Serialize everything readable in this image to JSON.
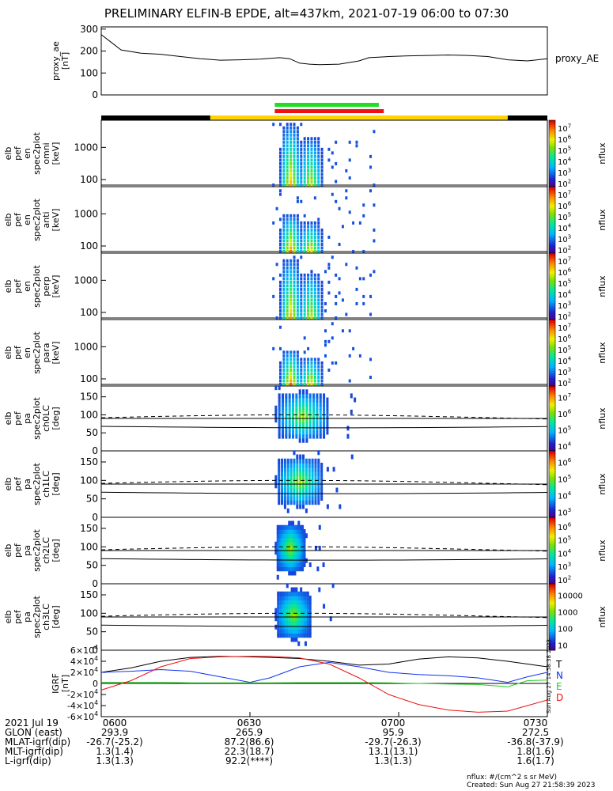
{
  "title": "PRELIMINARY ELFIN-B EPDE, alt=437km, 2021-07-19 06:00 to 07:30",
  "colors": {
    "background": "#ffffff",
    "ink": "#000000",
    "bar_green": "#22dd22",
    "bar_red": "#ee1111",
    "bar_yellow": "#ffd400",
    "bar_black": "#000000",
    "mag_T": "#000000",
    "mag_N": "#1133ee",
    "mag_E": "#22cc22",
    "mag_D": "#ee1111"
  },
  "chart_data": [
    {
      "type": "line",
      "panel": "proxy_ae",
      "ylabel": [
        "proxy_ae",
        "[nT]"
      ],
      "ylim": [
        0,
        310
      ],
      "yticks": [
        0,
        100,
        200,
        300
      ],
      "legend": "proxy_AE",
      "x_minutes": [
        0,
        2,
        4,
        8,
        12,
        16,
        20,
        24,
        28,
        32,
        36,
        38,
        40,
        42,
        44,
        48,
        52,
        54,
        56,
        58,
        62,
        66,
        70,
        74,
        78,
        82,
        86,
        90
      ],
      "values": [
        275,
        240,
        205,
        190,
        185,
        175,
        165,
        158,
        160,
        163,
        170,
        165,
        145,
        140,
        138,
        140,
        155,
        170,
        172,
        175,
        178,
        180,
        182,
        180,
        175,
        160,
        155,
        165
      ]
    },
    {
      "type": "heatmap",
      "panel": "omni",
      "ylabel": [
        "elb",
        "pef",
        "en",
        "spec2plot",
        "omni",
        "[keV]"
      ],
      "yscale": "log",
      "ylim": [
        60,
        7000
      ],
      "yticks": [
        100,
        1000
      ],
      "colorbar_label": "nflux",
      "colorbar_ticks": [
        "10^2",
        "10^3",
        "10^4",
        "10^5",
        "10^6",
        "10^7"
      ]
    },
    {
      "type": "heatmap",
      "panel": "anti",
      "ylabel": [
        "elb",
        "pef",
        "en",
        "spec2plot",
        "anti",
        "[keV]"
      ],
      "yscale": "log",
      "ylim": [
        60,
        7000
      ],
      "yticks": [
        100,
        1000
      ],
      "colorbar_label": "nflux",
      "colorbar_ticks": [
        "10^2",
        "10^3",
        "10^4",
        "10^5",
        "10^6",
        "10^7"
      ]
    },
    {
      "type": "heatmap",
      "panel": "perp",
      "ylabel": [
        "elb",
        "pef",
        "en",
        "spec2plot",
        "perp",
        "[keV]"
      ],
      "yscale": "log",
      "ylim": [
        60,
        7000
      ],
      "yticks": [
        100,
        1000
      ],
      "colorbar_label": "nflux",
      "colorbar_ticks": [
        "10^2",
        "10^3",
        "10^4",
        "10^5",
        "10^6",
        "10^7"
      ]
    },
    {
      "type": "heatmap",
      "panel": "para",
      "ylabel": [
        "elb",
        "pef",
        "en",
        "spec2plot",
        "para",
        "[keV]"
      ],
      "yscale": "log",
      "ylim": [
        60,
        7000
      ],
      "yticks": [
        100,
        1000
      ],
      "colorbar_label": "nflux",
      "colorbar_ticks": [
        "10^2",
        "10^3",
        "10^4",
        "10^5",
        "10^6",
        "10^7"
      ]
    },
    {
      "type": "heatmap",
      "panel": "ch0LC",
      "ylabel": [
        "elb",
        "pef",
        "pa",
        "spec2plot",
        "ch0LC",
        "[deg]"
      ],
      "ylim": [
        0,
        180
      ],
      "yticks": [
        0,
        50,
        100,
        150
      ],
      "colorbar_label": "nflux",
      "colorbar_ticks": [
        "10^4",
        "10^5",
        "10^6",
        "10^7"
      ]
    },
    {
      "type": "heatmap",
      "panel": "ch1LC",
      "ylabel": [
        "elb",
        "pef",
        "pa",
        "spec2plot",
        "ch1LC",
        "[deg]"
      ],
      "ylim": [
        0,
        180
      ],
      "yticks": [
        0,
        50,
        100,
        150
      ],
      "colorbar_label": "nflux",
      "colorbar_ticks": [
        "10^3",
        "10^4",
        "10^5",
        "10^6"
      ]
    },
    {
      "type": "heatmap",
      "panel": "ch2LC",
      "ylabel": [
        "elb",
        "pef",
        "pa",
        "spec2plot",
        "ch2LC",
        "[deg]"
      ],
      "ylim": [
        0,
        180
      ],
      "yticks": [
        0,
        50,
        100,
        150
      ],
      "colorbar_label": "nflux",
      "colorbar_ticks": [
        "10^2",
        "10^3",
        "10^4",
        "10^5",
        "10^6"
      ]
    },
    {
      "type": "heatmap",
      "panel": "ch3LC",
      "ylabel": [
        "elb",
        "pef",
        "pa",
        "spec2plot",
        "ch3LC",
        "[deg]"
      ],
      "ylim": [
        0,
        180
      ],
      "yticks": [
        0,
        50,
        100,
        150
      ],
      "colorbar_label": "nflux",
      "colorbar_ticks": [
        "10",
        "100",
        "1000",
        "10000"
      ]
    },
    {
      "type": "line",
      "panel": "igrf",
      "ylabel": [
        "IGRF",
        "[nT]"
      ],
      "ylim": [
        -60000,
        60000
      ],
      "yticks": [
        "-6×10^4",
        "-4×10^4",
        "-2×10^4",
        "0",
        "2×10^4",
        "4×10^4",
        "6×10^4"
      ],
      "legend": [
        "T",
        "N",
        "E",
        "D"
      ],
      "x_minutes": [
        0,
        6,
        12,
        18,
        24,
        30,
        34,
        40,
        46,
        52,
        58,
        64,
        70,
        76,
        82,
        86,
        90
      ],
      "series": [
        {
          "name": "T",
          "values": [
            20000,
            28000,
            40000,
            47000,
            49000,
            48000,
            47000,
            45000,
            40000,
            33000,
            35000,
            44000,
            48000,
            46000,
            40000,
            35000,
            30000
          ]
        },
        {
          "name": "N",
          "values": [
            20000,
            22000,
            25000,
            22000,
            12000,
            2000,
            10000,
            30000,
            38000,
            30000,
            20000,
            16000,
            14000,
            10000,
            2000,
            12000,
            20000
          ]
        },
        {
          "name": "E",
          "values": [
            2000,
            2000,
            2000,
            1000,
            1000,
            1000,
            1000,
            1500,
            1500,
            1500,
            1000,
            0,
            -1000,
            -2000,
            -6000,
            5000,
            6000
          ]
        },
        {
          "name": "D",
          "values": [
            -12000,
            5000,
            30000,
            45000,
            48000,
            49000,
            49000,
            46000,
            35000,
            10000,
            -20000,
            -38000,
            -48000,
            -52000,
            -50000,
            -40000,
            -30000
          ]
        }
      ]
    }
  ],
  "time_bars": {
    "green_minutes": [
      35,
      56
    ],
    "red_minutes": [
      35,
      57
    ],
    "segments": [
      {
        "from": 0,
        "to": 22,
        "color": "#000000"
      },
      {
        "from": 22,
        "to": 82,
        "color": "#ffd400"
      },
      {
        "from": 82,
        "to": 90,
        "color": "#000000"
      }
    ]
  },
  "bottom_table": {
    "row_labels": [
      "2021 Jul 19",
      "GLON (east)",
      "MLAT-igrf(dip)",
      "MLT-igrf(dip)",
      "L-igrf(dip)"
    ],
    "columns": [
      {
        "time": "0600",
        "glon": "293.9",
        "mlat": "-26.7(-25.2)",
        "mlt": "1.3(1.4)",
        "l": "1.3(1.3)"
      },
      {
        "time": "0630",
        "glon": "265.9",
        "mlat": "87.2(86.6)",
        "mlt": "22.3(18.7)",
        "l": "92.2(****)"
      },
      {
        "time": "0700",
        "glon": "95.9",
        "mlat": "-29.7(-26.3)",
        "mlt": "13.1(13.1)",
        "l": "1.3(1.3)"
      },
      {
        "time": "0730",
        "glon": "272.5",
        "mlat": "-36.8(-37.9)",
        "mlt": "1.8(1.6)",
        "l": "1.6(1.7)"
      }
    ]
  },
  "footnote": {
    "units": "nflux: #/(cm^2 s sr MeV)",
    "created": "Created: Sun Aug 27 21:58:39 2023",
    "stamp": "Sun Aug 27 14:58:38 2023"
  }
}
